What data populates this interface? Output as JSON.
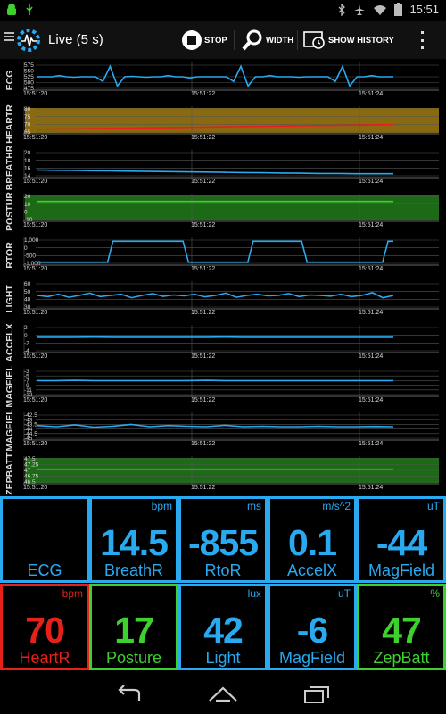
{
  "status": {
    "time": "15:51"
  },
  "toolbar": {
    "title": "Live (5 s)",
    "stop_label": "STOP",
    "width_label": "WIDTH",
    "history_label": "SHOW HISTORY"
  },
  "charts": [
    {
      "label": "ECG",
      "ticks": [
        "575",
        "550",
        "525",
        "500",
        "475"
      ],
      "color": "#29a9f0",
      "band": null,
      "series": [
        0.5,
        0.5,
        0.5,
        0.55,
        0.5,
        0.48,
        0.5,
        0.5,
        0.5,
        0.3,
        0.95,
        0.1,
        0.5,
        0.52,
        0.5,
        0.48,
        0.5,
        0.5,
        0.55,
        0.5,
        0.5,
        0.45,
        0.5,
        0.5,
        0.5,
        0.5,
        0.5,
        0.3,
        0.95,
        0.1,
        0.5,
        0.5,
        0.55,
        0.5,
        0.5,
        0.5,
        0.48,
        0.5,
        0.5,
        0.5,
        0.5,
        0.3,
        0.95,
        0.1,
        0.5,
        0.5,
        0.55,
        0.5,
        0.5,
        0.5
      ]
    },
    {
      "label": "HEARTR",
      "ticks": [
        "80",
        "75",
        "70",
        "65"
      ],
      "color": "#e6201b",
      "band": "#8a6a10",
      "series": [
        0.12,
        0.13,
        0.14,
        0.15,
        0.16,
        0.17,
        0.18,
        0.19,
        0.2,
        0.21,
        0.22,
        0.23,
        0.24,
        0.25,
        0.26,
        0.27,
        0.28,
        0.29,
        0.3,
        0.31,
        0.32
      ]
    },
    {
      "label": "BREATHR",
      "ticks": [
        "20",
        "18",
        "16",
        "14"
      ],
      "color": "#29a9f0",
      "band": null,
      "series": [
        0.25,
        0.24,
        0.23,
        0.22,
        0.21,
        0.2,
        0.19,
        0.18,
        0.17,
        0.16,
        0.15,
        0.14,
        0.13,
        0.12,
        0.11,
        0.1,
        0.1,
        0.09,
        0.09,
        0.09
      ]
    },
    {
      "label": "POSTUR",
      "ticks": [
        "20",
        "10",
        "0",
        "-10"
      ],
      "color": "#3ed02f",
      "band": "#1d6a16",
      "series": [
        0.78,
        0.78,
        0.78,
        0.78,
        0.78,
        0.78,
        0.78,
        0.78,
        0.78,
        0.78,
        0.78,
        0.78,
        0.78,
        0.78,
        0.78,
        0.78,
        0.78,
        0.78,
        0.78,
        0.78
      ]
    },
    {
      "label": "RTOR",
      "ticks": [
        "1,000",
        "0",
        "-500",
        "-1,000"
      ],
      "color": "#29a9f0",
      "band": null,
      "series": [
        0.05,
        0.05,
        0.05,
        0.05,
        0.05,
        0.05,
        0.05,
        0.05,
        0.05,
        0.05,
        0.05,
        0.05,
        0.05,
        0.05,
        0.95,
        0.95,
        0.95,
        0.95,
        0.95,
        0.95,
        0.95,
        0.95,
        0.95,
        0.95,
        0.95,
        0.95,
        0.95,
        0.95,
        0.05,
        0.05,
        0.05,
        0.05,
        0.05,
        0.05,
        0.05,
        0.05,
        0.05,
        0.05,
        0.05,
        0.05,
        0.95,
        0.95,
        0.95,
        0.95,
        0.95,
        0.95,
        0.95,
        0.95,
        0.95,
        0.95,
        0.05,
        0.05,
        0.05,
        0.05,
        0.05,
        0.05,
        0.05,
        0.05,
        0.05,
        0.05,
        0.05,
        0.05,
        0.05,
        0.05,
        0.05,
        0.95,
        0.95
      ]
    },
    {
      "label": "LIGHT",
      "ticks": [
        "60",
        "50",
        "40",
        "30"
      ],
      "color": "#29a9f0",
      "band": null,
      "series": [
        0.5,
        0.45,
        0.55,
        0.42,
        0.5,
        0.6,
        0.45,
        0.5,
        0.55,
        0.4,
        0.5,
        0.58,
        0.46,
        0.52,
        0.48,
        0.55,
        0.44,
        0.5,
        0.6,
        0.42,
        0.5,
        0.55,
        0.48,
        0.5,
        0.58,
        0.45,
        0.52,
        0.5,
        0.47,
        0.55,
        0.45,
        0.5,
        0.62,
        0.4,
        0.5
      ]
    },
    {
      "label": "ACCELX",
      "ticks": [
        "2",
        "0",
        "-2",
        "-4"
      ],
      "color": "#29a9f0",
      "band": null,
      "series": [
        0.58,
        0.58,
        0.58,
        0.59,
        0.58,
        0.58,
        0.58,
        0.58,
        0.58,
        0.58,
        0.59,
        0.58,
        0.58,
        0.58,
        0.58,
        0.58,
        0.58,
        0.58,
        0.58,
        0.58
      ]
    },
    {
      "label": "MAGFIEL",
      "ticks": [
        "-3",
        "-5",
        "-7",
        "-9",
        "-11",
        "-13"
      ],
      "color": "#29a9f0",
      "band": null,
      "series": [
        0.6,
        0.6,
        0.61,
        0.6,
        0.6,
        0.6,
        0.6,
        0.6,
        0.6,
        0.61,
        0.6,
        0.6,
        0.6,
        0.6,
        0.6,
        0.6,
        0.6,
        0.6,
        0.6,
        0.6
      ]
    },
    {
      "label": "MAGFIEL",
      "ticks": [
        "-42.5",
        "-43",
        "-43.5",
        "-44",
        "-44.5",
        "-45"
      ],
      "color": "#29a9f0",
      "band": null,
      "series": [
        0.55,
        0.5,
        0.58,
        0.48,
        0.52,
        0.6,
        0.5,
        0.55,
        0.52,
        0.5,
        0.56,
        0.5,
        0.52,
        0.5,
        0.5,
        0.52,
        0.5,
        0.5,
        0.51,
        0.5
      ]
    },
    {
      "label": "ZEPBATT",
      "ticks": [
        "47.5",
        "47.25",
        "47",
        "46.75",
        "46.5"
      ],
      "color": "#3ed02f",
      "band": "#1d6a16",
      "series": [
        0.55,
        0.55,
        0.55,
        0.55,
        0.55,
        0.55,
        0.55,
        0.55,
        0.55,
        0.55,
        0.55,
        0.55,
        0.55,
        0.55,
        0.55,
        0.55,
        0.55,
        0.55,
        0.55,
        0.55
      ]
    }
  ],
  "axis_times": [
    "15:51:20",
    "15:51:22",
    "15:51:24"
  ],
  "tiles": [
    {
      "name": "ECG",
      "value": "",
      "unit": "",
      "color": "#29a9f0"
    },
    {
      "name": "BreathR",
      "value": "14.5",
      "unit": "bpm",
      "color": "#29a9f0"
    },
    {
      "name": "RtoR",
      "value": "-855",
      "unit": "ms",
      "color": "#29a9f0"
    },
    {
      "name": "AccelX",
      "value": "0.1",
      "unit": "m/s^2",
      "color": "#29a9f0"
    },
    {
      "name": "MagField",
      "value": "-44",
      "unit": "uT",
      "color": "#29a9f0"
    },
    {
      "name": "HeartR",
      "value": "70",
      "unit": "bpm",
      "color": "#e6201b"
    },
    {
      "name": "Posture",
      "value": "17",
      "unit": "",
      "color": "#3ed02f"
    },
    {
      "name": "Light",
      "value": "42",
      "unit": "lux",
      "color": "#29a9f0"
    },
    {
      "name": "MagField",
      "value": "-6",
      "unit": "uT",
      "color": "#29a9f0"
    },
    {
      "name": "ZepBatt",
      "value": "47",
      "unit": "%",
      "color": "#3ed02f"
    }
  ],
  "icons": {
    "android": "android-icon",
    "usb": "usb-icon",
    "bluetooth": "bluetooth-icon",
    "airplane": "airplane-icon",
    "wifi": "wifi-icon",
    "battery": "battery-icon",
    "stop": "stop-icon",
    "width": "magnifier-icon",
    "history": "history-icon",
    "overflow": "overflow-menu-icon",
    "back": "back-icon",
    "home": "home-icon",
    "recent": "recent-apps-icon"
  }
}
